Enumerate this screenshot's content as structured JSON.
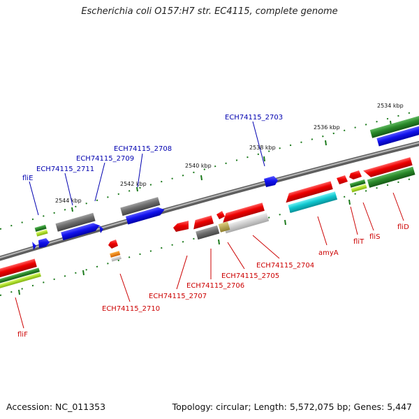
{
  "title": "Escherichia coli O157:H7 str. EC4115, complete genome",
  "footer": {
    "accession": "Accession: NC_011353",
    "summary": "Topology: circular; Length: 5,572,075 bp; Genes: 5,447"
  },
  "colors": {
    "backbone": "#8a8a8a",
    "tick": "#1c7a1c",
    "label_forward": "#0000b0",
    "label_reverse": "#cc0000",
    "feature_red": "#e80000",
    "feature_blue": "#1010e8",
    "feature_gray": "#6e6e6e",
    "feature_green": "#2a8a2a",
    "feature_cyan": "#10c8d0",
    "feature_lime": "#b0e030",
    "feature_orange": "#f08000",
    "feature_olive": "#b0a040",
    "feature_lightgray": "#c0c0c0"
  },
  "ticks": [
    "2534 kbp",
    "2536 kbp",
    "2538 kbp",
    "2540 kbp",
    "2542 kbp",
    "2544 kbp"
  ],
  "labels_top": [
    "ECH74115_2703",
    "ECH74115_2708",
    "ECH74115_2709",
    "ECH74115_2711",
    "fliE"
  ],
  "labels_bottom": [
    "fliD",
    "fliS",
    "fliT",
    "amyA",
    "ECH74115_2704",
    "ECH74115_2705",
    "ECH74115_2706",
    "ECH74115_2707",
    "ECH74115_2710",
    "fliF"
  ]
}
